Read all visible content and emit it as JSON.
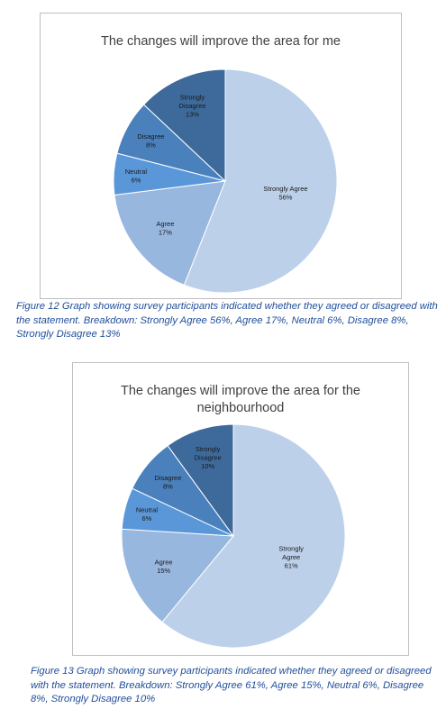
{
  "chart_data": [
    {
      "type": "pie",
      "title": "The changes will improve the area for me",
      "categories": [
        "Strongly Agree",
        "Agree",
        "Neutral",
        "Disagree",
        "Strongly Disagree"
      ],
      "values": [
        56,
        17,
        6,
        8,
        13
      ],
      "value_labels": [
        "56%",
        "17%",
        "6%",
        "8%",
        "13%"
      ],
      "colors": [
        "#bdd0ea",
        "#98b7df",
        "#5a97d9",
        "#4a80bc",
        "#3d6a9b"
      ],
      "caption": "Figure 12 Graph showing survey participants indicated whether they agreed or disagreed with the statement. Breakdown: Strongly Agree 56%, Agree 17%, Neutral 6%, Disagree 8%, Strongly Disagree 13%"
    },
    {
      "type": "pie",
      "title": "The changes will improve the area for the neighbourhood",
      "categories": [
        "Strongly Agree",
        "Agree",
        "Neutral",
        "Disagree",
        "Strongly Disagree"
      ],
      "values": [
        61,
        15,
        6,
        8,
        10
      ],
      "value_labels": [
        "61%",
        "15%",
        "6%",
        "8%",
        "10%"
      ],
      "colors": [
        "#bdd0ea",
        "#98b7df",
        "#5a97d9",
        "#4a80bc",
        "#3d6a9b"
      ],
      "caption": "Figure 13 Graph showing survey participants indicated whether they agreed or disagreed with the statement. Breakdown: Strongly Agree 61%, Agree 15%, Neutral 6%, Disagree 8%, Strongly Disagree 10%"
    }
  ]
}
